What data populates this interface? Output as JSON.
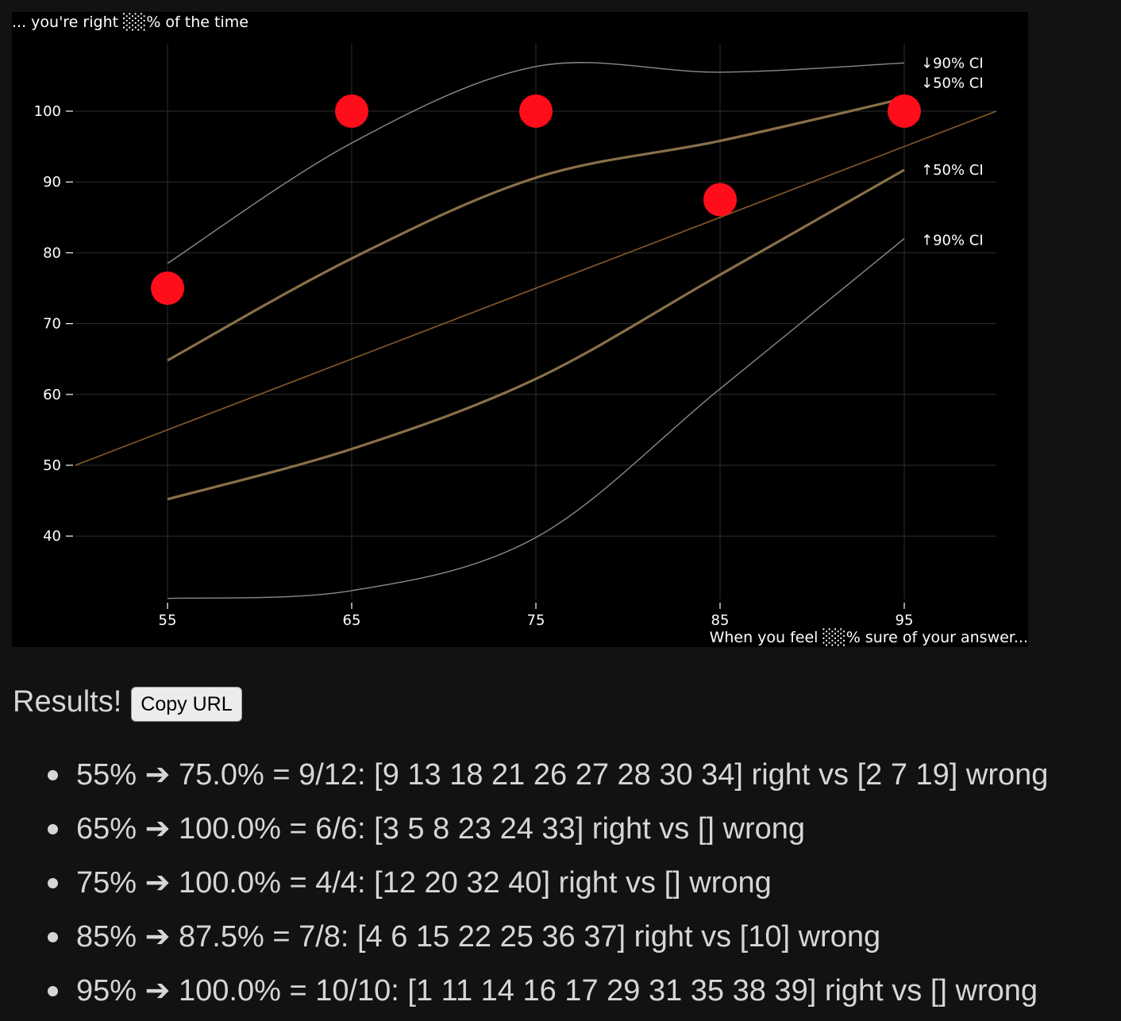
{
  "colors": {
    "page_background": "#121212",
    "chart_background": "#000000",
    "grid": "#2e2e2e",
    "diagonal": "#8a5a2a",
    "ci50_band": "#8a7048",
    "ci90_band": "#8a8a8a",
    "points": "#ff0d1a",
    "text": "#d6d6d6"
  },
  "chart": {
    "y_axis_title": "... you're right ░░% of the time",
    "x_axis_title": "When you feel ░░% sure of your answer...",
    "ci_labels": {
      "upper90": "↓90% CI",
      "upper50": "↓50% CI",
      "lower50": "↑50% CI",
      "lower90": "↑90% CI"
    }
  },
  "chart_data": {
    "type": "scatter",
    "x": [
      55,
      65,
      75,
      85,
      95
    ],
    "y": [
      75.0,
      100.0,
      100.0,
      87.5,
      100.0
    ],
    "xlabel": "When you feel ░░% sure of your answer...",
    "ylabel": "... you're right ░░% of the time",
    "xlim": [
      50,
      100
    ],
    "ylim": [
      31,
      110
    ],
    "x_ticks": [
      55,
      65,
      75,
      85,
      95
    ],
    "y_ticks": [
      40,
      50,
      60,
      70,
      80,
      90,
      100
    ],
    "grid": true,
    "reference_line": {
      "x": [
        50,
        100
      ],
      "y": [
        50,
        100
      ]
    },
    "bands": [
      {
        "name": "↓90% CI",
        "x": [
          55,
          65,
          75,
          85,
          95
        ],
        "y": [
          78.5,
          95.5,
          106.3,
          105.5,
          106.8
        ]
      },
      {
        "name": "↓50% CI",
        "x": [
          55,
          65,
          75,
          85,
          95
        ],
        "y": [
          64.8,
          79.2,
          90.6,
          95.8,
          101.8
        ]
      },
      {
        "name": "↑50% CI",
        "x": [
          55,
          65,
          75,
          85,
          95
        ],
        "y": [
          45.2,
          52.3,
          62.2,
          76.9,
          91.7
        ]
      },
      {
        "name": "↑90% CI",
        "x": [
          55,
          65,
          75,
          85,
          95
        ],
        "y": [
          31.2,
          32.3,
          39.8,
          60.8,
          82.0
        ]
      }
    ]
  },
  "results": {
    "title": "Results!",
    "copy_button": "Copy URL",
    "items": [
      "55% ➔ 75.0% = 9/12: [9 13 18 21 26 27 28 30 34] right vs [2 7 19] wrong",
      "65% ➔ 100.0% = 6/6: [3 5 8 23 24 33] right vs [] wrong",
      "75% ➔ 100.0% = 4/4: [12 20 32 40] right vs [] wrong",
      "85% ➔ 87.5% = 7/8: [4 6 15 22 25 36 37] right vs [10] wrong",
      "95% ➔ 100.0% = 10/10: [1 11 14 16 17 29 31 35 38 39] right vs [] wrong"
    ]
  }
}
